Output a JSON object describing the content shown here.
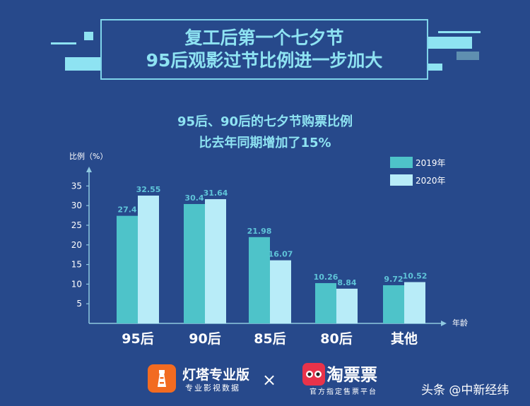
{
  "header": {
    "title_line1": "复工后第一个七夕节",
    "title_line2": "95后观影过节比例进一步加大"
  },
  "subtitle": {
    "line1": "95后、90后的七夕节购票比例",
    "line2": "比去年同期增加了15%"
  },
  "chart_data": {
    "type": "bar",
    "categories": [
      "95后",
      "90后",
      "85后",
      "80后",
      "其他"
    ],
    "series": [
      {
        "name": "2019年",
        "values": [
          27.4,
          30.4,
          21.98,
          10.26,
          9.72
        ],
        "color": "#4ec3c9"
      },
      {
        "name": "2020年",
        "values": [
          32.55,
          31.64,
          16.07,
          8.84,
          10.52
        ],
        "color": "#b8ecf8"
      }
    ],
    "value_labels": [
      [
        "27.4",
        "30.4",
        "21.98",
        "10.26",
        "9.72"
      ],
      [
        "32.55",
        "31.64",
        "16.07",
        "8.84",
        "10.52"
      ]
    ],
    "ylabel": "比例（%）",
    "xlabel": "年龄",
    "yticks": [
      "5",
      "10",
      "15",
      "20",
      "25",
      "30",
      "35"
    ],
    "ytick_values": [
      5,
      10,
      15,
      20,
      25,
      30,
      35
    ],
    "ylim": [
      0,
      40
    ],
    "legend_position": "top-right",
    "grid": false
  },
  "footer": {
    "brand1_name": "灯塔专业版",
    "brand1_tagline": "专业影视数据",
    "times_symbol": "×",
    "brand2_name": "淘票票",
    "brand2_tagline": "官方指定售票平台",
    "watermark": "头条 @中新经纬"
  },
  "colors": {
    "background": "#27498b",
    "accent": "#8ee3f2",
    "axis": "#8fc9e0",
    "label": "#5fc4d8"
  }
}
